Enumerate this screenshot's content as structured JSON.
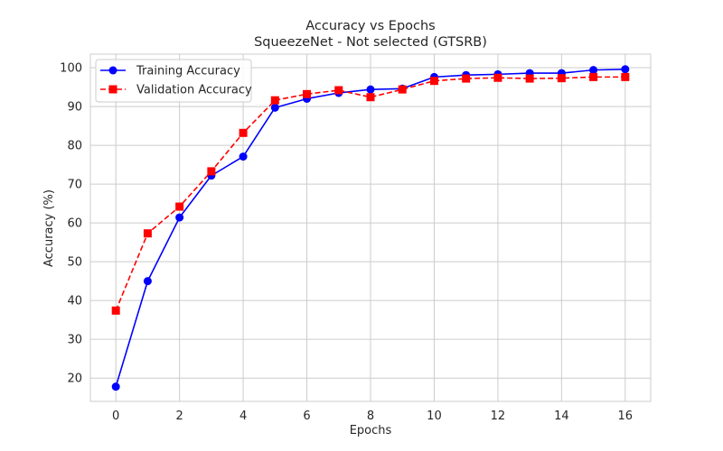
{
  "chart_data": {
    "type": "line",
    "title": "Accuracy vs Epochs",
    "subtitle": "SqueezeNet - Not selected (GTSRB)",
    "xlabel": "Epochs",
    "ylabel": "Accuracy (%)",
    "xlim": [
      -0.8,
      16.8
    ],
    "ylim": [
      14,
      103.5
    ],
    "xticks": [
      0,
      2,
      4,
      6,
      8,
      10,
      12,
      14,
      16
    ],
    "yticks": [
      20,
      30,
      40,
      50,
      60,
      70,
      80,
      90,
      100
    ],
    "grid": true,
    "legend_position": "top-left",
    "x": [
      0,
      1,
      2,
      3,
      4,
      5,
      6,
      7,
      8,
      9,
      10,
      11,
      12,
      13,
      14,
      15,
      16
    ],
    "series": [
      {
        "name": "Training Accuracy",
        "color": "#0000ff",
        "line_style": "solid",
        "marker": "circle",
        "values": [
          17.8,
          45.0,
          61.4,
          72.2,
          77.1,
          89.7,
          92.0,
          93.5,
          94.4,
          94.6,
          97.6,
          98.1,
          98.3,
          98.6,
          98.6,
          99.4,
          99.6
        ]
      },
      {
        "name": "Validation Accuracy",
        "color": "#ff0000",
        "line_style": "dashed",
        "marker": "square",
        "values": [
          37.4,
          57.3,
          64.2,
          73.3,
          83.2,
          91.6,
          93.2,
          94.2,
          92.4,
          94.4,
          96.6,
          97.2,
          97.4,
          97.2,
          97.3,
          97.6,
          97.6
        ]
      }
    ]
  }
}
